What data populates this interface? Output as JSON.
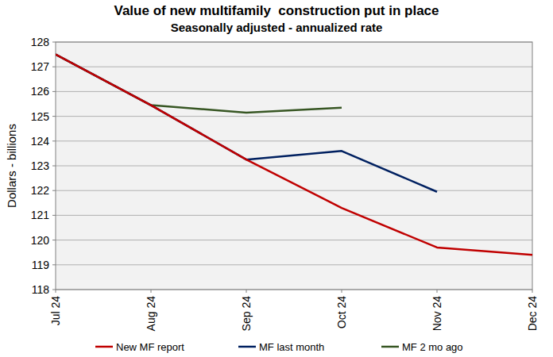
{
  "chart_data": {
    "type": "line",
    "title": "Value of new multifamily  construction put in place",
    "subtitle": "Seasonally adjusted - annualized rate",
    "y_label": "Dollars - billions",
    "categories": [
      "Jul 24",
      "Aug 24",
      "Sep 24",
      "Oct 24",
      "Nov 24",
      "Dec 24"
    ],
    "series": [
      {
        "name": "New MF report",
        "color": "#c00000",
        "values": [
          127.5,
          125.45,
          123.25,
          121.3,
          119.7,
          119.4
        ]
      },
      {
        "name": "MF last month",
        "color": "#002060",
        "values": [
          127.5,
          125.45,
          123.25,
          123.6,
          121.95,
          null
        ]
      },
      {
        "name": "MF 2 mo ago",
        "color": "#375623",
        "values": [
          127.5,
          125.45,
          125.15,
          125.35,
          null,
          null
        ]
      }
    ],
    "ylim": [
      118,
      128
    ],
    "yticks": [
      118,
      119,
      120,
      121,
      122,
      123,
      124,
      125,
      126,
      127,
      128
    ],
    "grid": true,
    "legend": "bottom"
  }
}
